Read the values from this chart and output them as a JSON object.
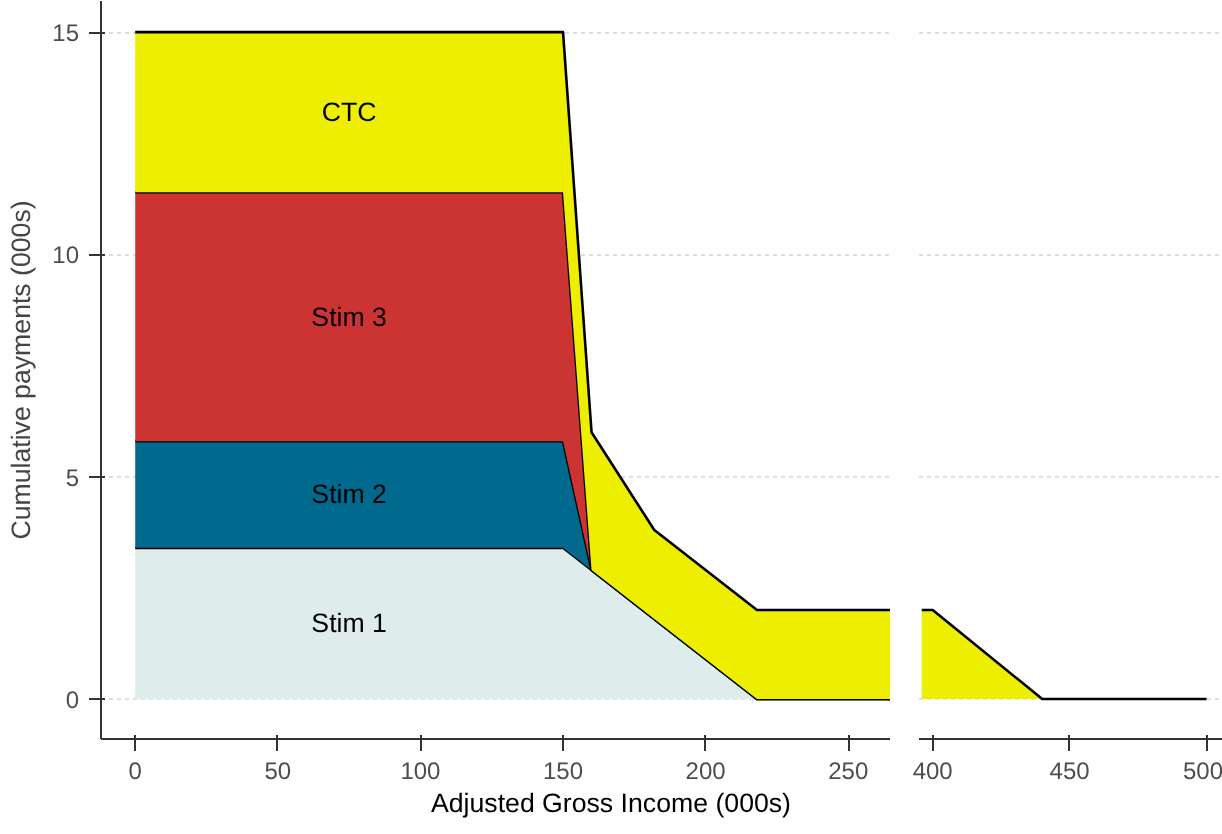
{
  "chart_data": [
    {
      "type": "area",
      "stacked": true,
      "ylabel": "Cumulative payments (000s)",
      "xlabel": "Adjusted Gross Income (000s)",
      "x": [
        0,
        150,
        160,
        182,
        218,
        265
      ],
      "xlim": [
        -12,
        265
      ],
      "ylim": [
        -0.9,
        15.7
      ],
      "xticks": [
        0,
        50,
        100,
        150,
        200,
        250
      ],
      "yticks": [
        0,
        5,
        10,
        15
      ],
      "grid": "y",
      "series": [
        {
          "name": "Stim 1",
          "color": "#deecec",
          "values": [
            3.4,
            3.4,
            2.9,
            1.8,
            0,
            0
          ]
        },
        {
          "name": "Stim 2",
          "color": "#006a8e",
          "values": [
            2.4,
            2.4,
            0,
            0,
            0,
            0
          ]
        },
        {
          "name": "Stim 3",
          "color": "#cc3333",
          "values": [
            5.6,
            5.6,
            0,
            0,
            0,
            0
          ]
        },
        {
          "name": "CTC",
          "color": "#eeee00",
          "values": [
            3.6,
            3.6,
            3.1,
            2.0,
            2.0,
            2.0
          ]
        }
      ]
    },
    {
      "type": "area",
      "stacked": true,
      "x": [
        396,
        400,
        440,
        500
      ],
      "xlim": [
        395,
        506
      ],
      "xticks": [
        400,
        450,
        500
      ],
      "yticks": [
        0,
        5,
        10,
        15
      ],
      "grid": "y",
      "tick_labels": "x",
      "series": [
        {
          "color": "#eeee00",
          "values": [
            2.0,
            2.0,
            0,
            0
          ]
        }
      ]
    }
  ]
}
